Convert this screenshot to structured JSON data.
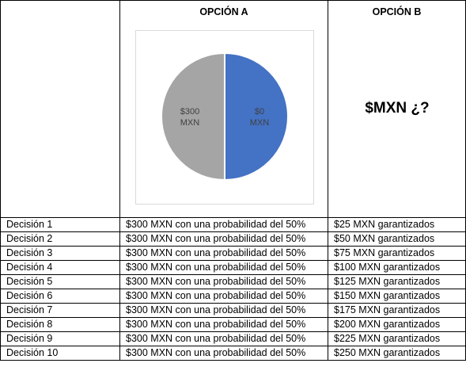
{
  "header": {
    "option_a": "OPCIÓN A",
    "option_b": "OPCIÓN B",
    "option_b_value": "$MXN ¿?"
  },
  "chart_data": {
    "type": "pie",
    "slices": [
      {
        "label_line1": "$0",
        "label_line2": "MXN",
        "value": 50,
        "color": "#4472c4"
      },
      {
        "label_line1": "$300",
        "label_line2": "MXN",
        "value": 50,
        "color": "#a5a5a5"
      }
    ]
  },
  "rows": [
    {
      "decision": "Decisión 1",
      "a": "$300 MXN con una probabilidad del 50%",
      "b": "$25 MXN garantizados"
    },
    {
      "decision": "Decisión 2",
      "a": "$300 MXN con una probabilidad del 50%",
      "b": "$50 MXN garantizados"
    },
    {
      "decision": "Decisión 3",
      "a": "$300 MXN con una probabilidad del 50%",
      "b": "$75 MXN garantizados"
    },
    {
      "decision": "Decisión 4",
      "a": "$300 MXN con una probabilidad del 50%",
      "b": "$100 MXN garantizados"
    },
    {
      "decision": "Decisión 5",
      "a": "$300 MXN con una probabilidad del 50%",
      "b": "$125 MXN garantizados"
    },
    {
      "decision": "Decisión 6",
      "a": "$300 MXN con una probabilidad del 50%",
      "b": "$150 MXN garantizados"
    },
    {
      "decision": "Decisión 7",
      "a": "$300 MXN con una probabilidad del 50%",
      "b": "$175 MXN garantizados"
    },
    {
      "decision": "Decisión 8",
      "a": "$300 MXN con una probabilidad del 50%",
      "b": "$200 MXN garantizados"
    },
    {
      "decision": "Decisión 9",
      "a": "$300 MXN con una probabilidad del 50%",
      "b": "$225 MXN garantizados"
    },
    {
      "decision": "Decisión 10",
      "a": "$300 MXN con una probabilidad del 50%",
      "b": "$250 MXN garantizados"
    }
  ]
}
